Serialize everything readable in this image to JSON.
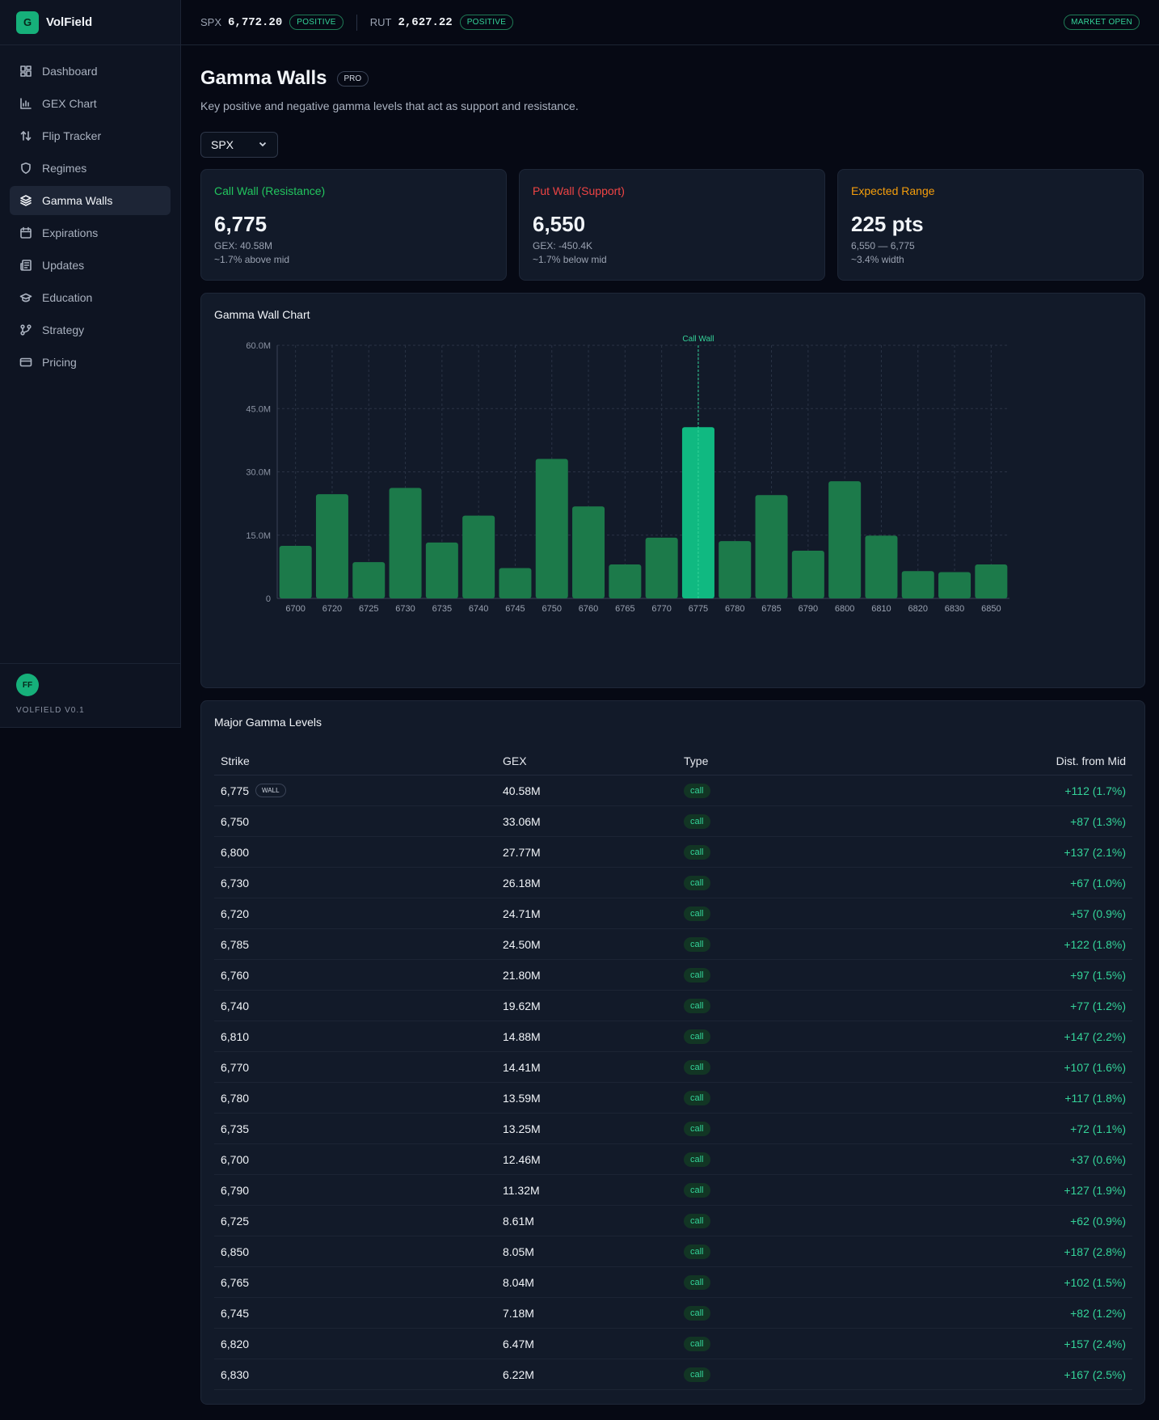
{
  "brand": {
    "logo_letter": "G",
    "name": "VolField"
  },
  "nav": [
    {
      "label": "Dashboard",
      "icon": "dashboard-icon",
      "active": false
    },
    {
      "label": "GEX Chart",
      "icon": "bar-chart-icon",
      "active": false
    },
    {
      "label": "Flip Tracker",
      "icon": "arrows-up-down-icon",
      "active": false
    },
    {
      "label": "Regimes",
      "icon": "shield-icon",
      "active": false
    },
    {
      "label": "Gamma Walls",
      "icon": "layers-icon",
      "active": true
    },
    {
      "label": "Expirations",
      "icon": "calendar-icon",
      "active": false
    },
    {
      "label": "Updates",
      "icon": "newspaper-icon",
      "active": false
    },
    {
      "label": "Education",
      "icon": "graduation-cap-icon",
      "active": false
    },
    {
      "label": "Strategy",
      "icon": "git-branch-icon",
      "active": false
    },
    {
      "label": "Pricing",
      "icon": "credit-card-icon",
      "active": false
    }
  ],
  "footer": {
    "avatar": "FF",
    "version": "VOLFIELD V0.1"
  },
  "topbar": {
    "tickers": [
      {
        "symbol": "SPX",
        "value": "6,772.20",
        "status": "POSITIVE"
      },
      {
        "symbol": "RUT",
        "value": "2,627.22",
        "status": "POSITIVE"
      }
    ],
    "market_status": "MARKET OPEN"
  },
  "page": {
    "title": "Gamma Walls",
    "badge": "PRO",
    "subtitle": "Key positive and negative gamma levels that act as support and resistance.",
    "symbol_select": "SPX"
  },
  "cards": [
    {
      "title": "Call Wall (Resistance)",
      "value": "6,775",
      "line1": "GEX: 40.58M",
      "line2": "~1.7% above mid",
      "color": "#22c55e"
    },
    {
      "title": "Put Wall (Support)",
      "value": "6,550",
      "line1": "GEX: -450.4K",
      "line2": "~1.7% below mid",
      "color": "#ef4444"
    },
    {
      "title": "Expected Range",
      "value": "225 pts",
      "line1": "6,550 — 6,775",
      "line2": "~3.4% width",
      "color": "#f59e0b"
    }
  ],
  "chart_panel_title": "Gamma Wall Chart",
  "chart_data": {
    "type": "bar",
    "categories": [
      "6700",
      "6720",
      "6725",
      "6730",
      "6735",
      "6740",
      "6745",
      "6750",
      "6760",
      "6765",
      "6770",
      "6775",
      "6780",
      "6785",
      "6790",
      "6800",
      "6810",
      "6820",
      "6830",
      "6850"
    ],
    "values": [
      12.46,
      24.71,
      8.61,
      26.18,
      13.25,
      19.62,
      7.18,
      33.06,
      21.8,
      8.04,
      14.41,
      40.58,
      13.59,
      24.5,
      11.32,
      27.77,
      14.88,
      6.47,
      6.22,
      8.05
    ],
    "unit": "M",
    "ylim": [
      0,
      60
    ],
    "yticks": [
      "0",
      "15.0M",
      "30.0M",
      "45.0M",
      "60.0M"
    ],
    "highlight_category": "6775",
    "annotation": "Call Wall",
    "grid": true,
    "colors": {
      "bar": "#1c7a4a",
      "highlight": "#10b981",
      "annotation": "#34d399"
    }
  },
  "table": {
    "title": "Major Gamma Levels",
    "headers": {
      "strike": "Strike",
      "gex": "GEX",
      "type": "Type",
      "dist": "Dist. from Mid"
    },
    "wall_badge": "WALL",
    "rows": [
      {
        "strike": "6,775",
        "gex": "40.58M",
        "type": "call",
        "dist": "+112 (1.7%)"
      },
      {
        "strike": "6,750",
        "gex": "33.06M",
        "type": "call",
        "dist": "+87 (1.3%)"
      },
      {
        "strike": "6,800",
        "gex": "27.77M",
        "type": "call",
        "dist": "+137 (2.1%)"
      },
      {
        "strike": "6,730",
        "gex": "26.18M",
        "type": "call",
        "dist": "+67 (1.0%)"
      },
      {
        "strike": "6,720",
        "gex": "24.71M",
        "type": "call",
        "dist": "+57 (0.9%)"
      },
      {
        "strike": "6,785",
        "gex": "24.50M",
        "type": "call",
        "dist": "+122 (1.8%)"
      },
      {
        "strike": "6,760",
        "gex": "21.80M",
        "type": "call",
        "dist": "+97 (1.5%)"
      },
      {
        "strike": "6,740",
        "gex": "19.62M",
        "type": "call",
        "dist": "+77 (1.2%)"
      },
      {
        "strike": "6,810",
        "gex": "14.88M",
        "type": "call",
        "dist": "+147 (2.2%)"
      },
      {
        "strike": "6,770",
        "gex": "14.41M",
        "type": "call",
        "dist": "+107 (1.6%)"
      },
      {
        "strike": "6,780",
        "gex": "13.59M",
        "type": "call",
        "dist": "+117 (1.8%)"
      },
      {
        "strike": "6,735",
        "gex": "13.25M",
        "type": "call",
        "dist": "+72 (1.1%)"
      },
      {
        "strike": "6,700",
        "gex": "12.46M",
        "type": "call",
        "dist": "+37 (0.6%)"
      },
      {
        "strike": "6,790",
        "gex": "11.32M",
        "type": "call",
        "dist": "+127 (1.9%)"
      },
      {
        "strike": "6,725",
        "gex": "8.61M",
        "type": "call",
        "dist": "+62 (0.9%)"
      },
      {
        "strike": "6,850",
        "gex": "8.05M",
        "type": "call",
        "dist": "+187 (2.8%)"
      },
      {
        "strike": "6,765",
        "gex": "8.04M",
        "type": "call",
        "dist": "+102 (1.5%)"
      },
      {
        "strike": "6,745",
        "gex": "7.18M",
        "type": "call",
        "dist": "+82 (1.2%)"
      },
      {
        "strike": "6,820",
        "gex": "6.47M",
        "type": "call",
        "dist": "+157 (2.4%)"
      },
      {
        "strike": "6,830",
        "gex": "6.22M",
        "type": "call",
        "dist": "+167 (2.5%)"
      }
    ]
  }
}
